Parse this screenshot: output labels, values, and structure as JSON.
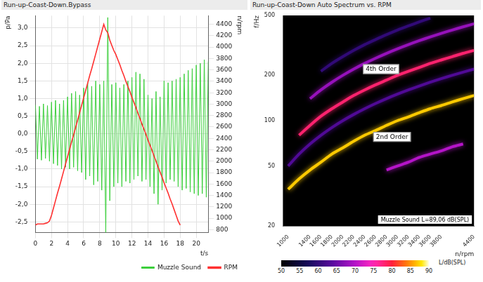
{
  "chart_data": [
    {
      "type": "line",
      "title": "Run-up-Coast-Down.Bypass",
      "xlabel": "t/s",
      "ylabel": "p/Pa",
      "y2label": "n/rpm",
      "x": [
        0,
        0.25,
        0.5,
        0.75,
        1,
        1.25,
        1.5,
        1.75,
        2,
        2.25,
        2.5,
        2.75,
        3,
        3.25,
        3.5,
        3.75,
        4,
        4.25,
        4.5,
        4.75,
        5,
        5.25,
        5.5,
        5.75,
        6,
        6.25,
        6.5,
        6.75,
        7,
        7.25,
        7.5,
        7.75,
        8,
        8.25,
        8.5,
        8.75,
        9,
        9.25,
        9.5,
        9.75,
        10,
        10.25,
        10.5,
        10.75,
        11,
        11.25,
        11.5,
        11.75,
        12,
        12.25,
        12.5,
        12.75,
        13,
        13.25,
        13.5,
        13.75,
        14,
        14.25,
        14.5,
        14.75,
        15,
        15.25,
        15.5,
        15.75,
        16,
        16.25,
        16.5,
        16.75,
        17,
        17.25,
        17.5,
        17.75,
        18,
        18.25,
        18.5,
        18.75,
        19,
        19.25,
        19.5,
        19.75,
        20,
        20.25,
        20.5,
        20.75,
        21,
        21.25,
        21.5
      ],
      "series": [
        {
          "name": "Muzzle Sound",
          "color": "#3ccf3c",
          "values": [
            0.82,
            -0.72,
            0.78,
            -0.75,
            0.85,
            -0.7,
            0.8,
            -0.78,
            0.9,
            -0.85,
            0.95,
            -0.9,
            0.85,
            -1.0,
            0.95,
            -0.95,
            1.05,
            -1.0,
            1.15,
            -0.95,
            1.2,
            -1.05,
            1.1,
            -1.1,
            1.3,
            -1.3,
            1.45,
            -1.2,
            1.35,
            -1.45,
            1.5,
            -1.35,
            1.4,
            -1.6,
            1.5,
            -2.8,
            3.3,
            -1.9,
            1.4,
            -1.5,
            1.45,
            -1.4,
            1.3,
            -1.5,
            1.4,
            -1.35,
            1.5,
            -1.4,
            1.6,
            -1.3,
            1.75,
            -1.2,
            1.7,
            -1.35,
            1.55,
            -1.3,
            1.1,
            -1.5,
            1.0,
            -1.7,
            1.2,
            -2.0,
            1.05,
            -1.6,
            1.5,
            -1.4,
            1.45,
            -1.3,
            1.5,
            -1.35,
            1.55,
            -1.5,
            1.6,
            -1.6,
            1.7,
            -1.55,
            1.8,
            -1.65,
            1.85,
            -1.7,
            1.95,
            -1.75,
            2.0,
            -1.7,
            2.1,
            -1.8,
            2.05
          ]
        },
        {
          "name": "RPM",
          "color": "#ff3030",
          "axis": "y2",
          "values": [
            880,
            900,
            900,
            900,
            900,
            910,
            920,
            950,
            1050,
            1180,
            1310,
            1440,
            1560,
            1690,
            1820,
            1950,
            2080,
            2210,
            2340,
            2460,
            2590,
            2720,
            2850,
            2980,
            3110,
            3240,
            3370,
            3500,
            3620,
            3750,
            3880,
            4010,
            4140,
            4270,
            4400,
            4300,
            4250,
            4120,
            4030,
            3940,
            3870,
            3780,
            3690,
            3590,
            3500,
            3400,
            3310,
            3220,
            3120,
            3030,
            2940,
            2840,
            2750,
            2650,
            2560,
            2470,
            2370,
            2280,
            2190,
            2090,
            2000,
            1900,
            1810,
            1720,
            1620,
            1530,
            1440,
            1340,
            1250,
            1150,
            1050,
            950,
            880,
            null,
            null,
            null,
            null,
            null,
            null,
            null,
            null,
            null,
            null,
            null,
            null,
            null,
            null
          ]
        }
      ],
      "xlim": [
        0,
        21.5
      ],
      "xticks": [
        0,
        2,
        4,
        6,
        8,
        10,
        12,
        14,
        16,
        18,
        20
      ],
      "ylim": [
        -2.8,
        3.35
      ],
      "yticks": [
        {
          "value": -2.5,
          "label": "-2,5"
        },
        {
          "value": -2,
          "label": "-2,0"
        },
        {
          "value": -1.5,
          "label": "-1,5"
        },
        {
          "value": -1,
          "label": "-1,0"
        },
        {
          "value": -0.5,
          "label": "-0,5"
        },
        {
          "value": 0,
          "label": "0,0"
        },
        {
          "value": 0.5,
          "label": "0,5"
        },
        {
          "value": 1,
          "label": "1,0"
        },
        {
          "value": 1.5,
          "label": "1,5"
        },
        {
          "value": 2,
          "label": "2,0"
        },
        {
          "value": 2.5,
          "label": "2,5"
        },
        {
          "value": 3,
          "label": "3,0"
        }
      ],
      "y2lim": [
        750,
        4550
      ],
      "y2ticks": [
        800,
        1000,
        1200,
        1400,
        1600,
        1800,
        2000,
        2200,
        2400,
        2600,
        2800,
        3000,
        3200,
        3400,
        3600,
        3800,
        4000,
        4200,
        4400
      ],
      "grid": true,
      "legend": "bottom"
    },
    {
      "type": "heatmap",
      "title": "Run-up-Coast-Down Auto Spectrum vs. RPM",
      "xlabel": "n/rpm",
      "ylabel": "f/Hz",
      "annotation": "Muzzle Sound L=89,06 dB(SPL)",
      "log": "y",
      "grid": false,
      "x": [
        1000,
        1200,
        1400,
        1600,
        1800,
        2000,
        2200,
        2400,
        2600,
        2800,
        3000,
        3200,
        3400,
        3600,
        3800,
        4000,
        4200,
        4400
      ],
      "series": [
        {
          "name": "2nd Order",
          "label_at": [
            2900,
            78
          ],
          "level": 87,
          "values": [
            35,
            41,
            47,
            53,
            60,
            66,
            73,
            80,
            86,
            93,
            100,
            106,
            113,
            120,
            126,
            133,
            140,
            147
          ]
        },
        {
          "name": "4th Order",
          "label_at": [
            2700,
            220
          ],
          "level": 78,
          "values": [
            null,
            80,
            93,
            107,
            120,
            133,
            147,
            160,
            173,
            186,
            200,
            213,
            226,
            240,
            253,
            266,
            280,
            293
          ]
        },
        {
          "level": 63,
          "values": [
            50,
            60,
            70,
            80,
            90,
            100,
            110,
            120,
            130,
            140,
            150,
            160,
            170,
            180,
            190,
            200,
            210,
            220
          ]
        },
        {
          "level": 68,
          "values": [
            null,
            null,
            140,
            160,
            180,
            200,
            220,
            240,
            260,
            280,
            300,
            320,
            340,
            360,
            380,
            400,
            420,
            440
          ]
        },
        {
          "level": 60,
          "values": [
            null,
            null,
            null,
            213,
            240,
            266,
            293,
            320,
            346,
            373,
            400,
            426,
            453,
            480,
            null,
            null,
            null,
            null
          ]
        },
        {
          "level": 70,
          "values": [
            null,
            null,
            null,
            null,
            null,
            null,
            null,
            null,
            null,
            47,
            50,
            53,
            57,
            60,
            63,
            67,
            70,
            null
          ]
        }
      ],
      "xlim": [
        900,
        4400
      ],
      "xticks": [
        1000,
        1400,
        1600,
        1800,
        2000,
        2200,
        2400,
        2600,
        2800,
        3000,
        3200,
        3400,
        3600,
        3800,
        4400
      ],
      "ylim": [
        20,
        500
      ],
      "yticks": [
        20,
        50,
        100,
        200,
        500
      ],
      "colorbar": {
        "label": "L/dB(SPL)",
        "range": [
          50,
          90
        ],
        "ticks": [
          50,
          55,
          60,
          65,
          70,
          75,
          80,
          85,
          90
        ]
      }
    }
  ]
}
